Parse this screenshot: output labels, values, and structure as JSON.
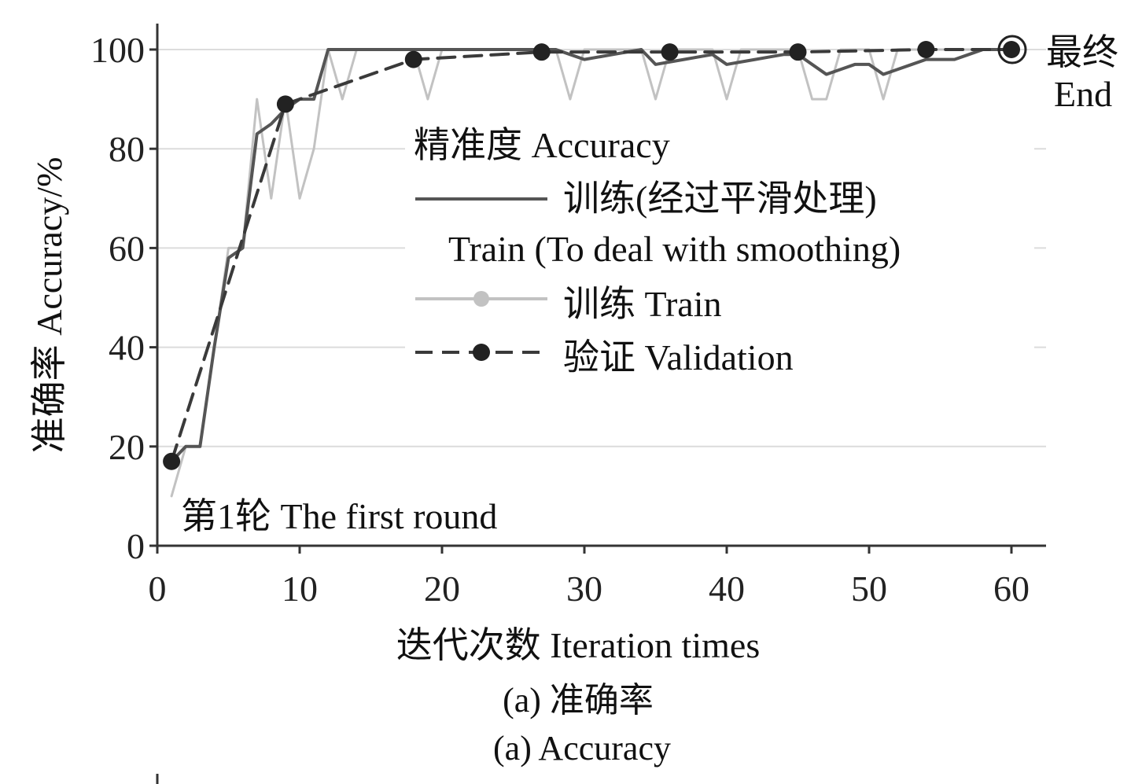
{
  "chart_data": {
    "type": "line",
    "xlabel": "迭代次数 Iteration times",
    "ylabel": "准确率 Accuracy/%",
    "xlim": [
      0,
      62
    ],
    "ylim": [
      0,
      105
    ],
    "xticks": [
      0,
      10,
      20,
      30,
      40,
      50,
      60
    ],
    "yticks": [
      0,
      20,
      40,
      60,
      80,
      100
    ],
    "grid": "horizontal",
    "legend": {
      "title": "精准度 Accuracy",
      "placement": "center-right",
      "entries": [
        {
          "series": "smoothed",
          "line1": "训练(经过平滑处理)",
          "line2": "Train (To deal with  smoothing)"
        },
        {
          "series": "train",
          "line1": "训练 Train"
        },
        {
          "series": "validation",
          "line1": "验证 Validation"
        }
      ]
    },
    "series": [
      {
        "key": "smoothed",
        "color": "#555555",
        "style": "solid",
        "x": [
          1,
          2,
          3,
          4,
          5,
          6,
          7,
          8,
          9,
          10,
          11,
          12,
          13,
          14,
          15,
          16,
          17,
          18,
          19,
          20,
          21,
          22,
          23,
          24,
          25,
          26,
          27,
          28,
          29,
          30,
          31,
          32,
          33,
          34,
          35,
          36,
          37,
          38,
          39,
          40,
          41,
          42,
          43,
          44,
          45,
          46,
          47,
          48,
          49,
          50,
          51,
          52,
          53,
          54,
          55,
          56,
          57,
          58,
          59,
          60
        ],
        "y": [
          17,
          20,
          20,
          40,
          58,
          60,
          83,
          85,
          88,
          90,
          90,
          100,
          100,
          100,
          100,
          100,
          100,
          100,
          100,
          100,
          100,
          100,
          100,
          100,
          100,
          100,
          100,
          100,
          99,
          98,
          98.5,
          99,
          99.5,
          100,
          97,
          97.5,
          98,
          98.5,
          99,
          97,
          97.5,
          98,
          98.5,
          99,
          99,
          97,
          95,
          96,
          97,
          97,
          95,
          96,
          97,
          98,
          98,
          98,
          99,
          100,
          100,
          100
        ]
      },
      {
        "key": "train",
        "color": "#c2c2c2",
        "style": "solid",
        "x": [
          1,
          2,
          3,
          4,
          5,
          6,
          7,
          8,
          9,
          10,
          11,
          12,
          13,
          14,
          15,
          16,
          17,
          18,
          19,
          20,
          21,
          22,
          23,
          24,
          25,
          26,
          27,
          28,
          29,
          30,
          31,
          32,
          33,
          34,
          35,
          36,
          37,
          38,
          39,
          40,
          41,
          42,
          43,
          44,
          45,
          46,
          47,
          48,
          49,
          50,
          51,
          52,
          53,
          54,
          55,
          56,
          57,
          58,
          59,
          60
        ],
        "y": [
          10,
          20,
          20,
          40,
          60,
          60,
          90,
          70,
          90,
          70,
          80,
          100,
          90,
          100,
          100,
          100,
          100,
          100,
          90,
          100,
          100,
          100,
          100,
          100,
          100,
          100,
          100,
          100,
          90,
          100,
          100,
          100,
          100,
          100,
          90,
          100,
          100,
          100,
          100,
          90,
          100,
          100,
          100,
          100,
          100,
          90,
          90,
          100,
          100,
          100,
          90,
          100,
          100,
          100,
          100,
          100,
          100,
          100,
          100,
          100
        ]
      },
      {
        "key": "validation",
        "color": "#3a3a3a",
        "style": "dashed",
        "marker": "circle",
        "x": [
          1,
          9,
          18,
          27,
          36,
          45,
          54,
          60
        ],
        "y": [
          17,
          89,
          98,
          99.5,
          99.5,
          99.5,
          100,
          100
        ]
      }
    ],
    "annotations": [
      {
        "text": "第1轮 The first round",
        "x": 1,
        "y": 17
      },
      {
        "text": "最终",
        "text2": "End",
        "x": 60,
        "y": 100
      }
    ]
  },
  "caption": {
    "line1": "(a) 准确率",
    "line2": "(a) Accuracy"
  }
}
